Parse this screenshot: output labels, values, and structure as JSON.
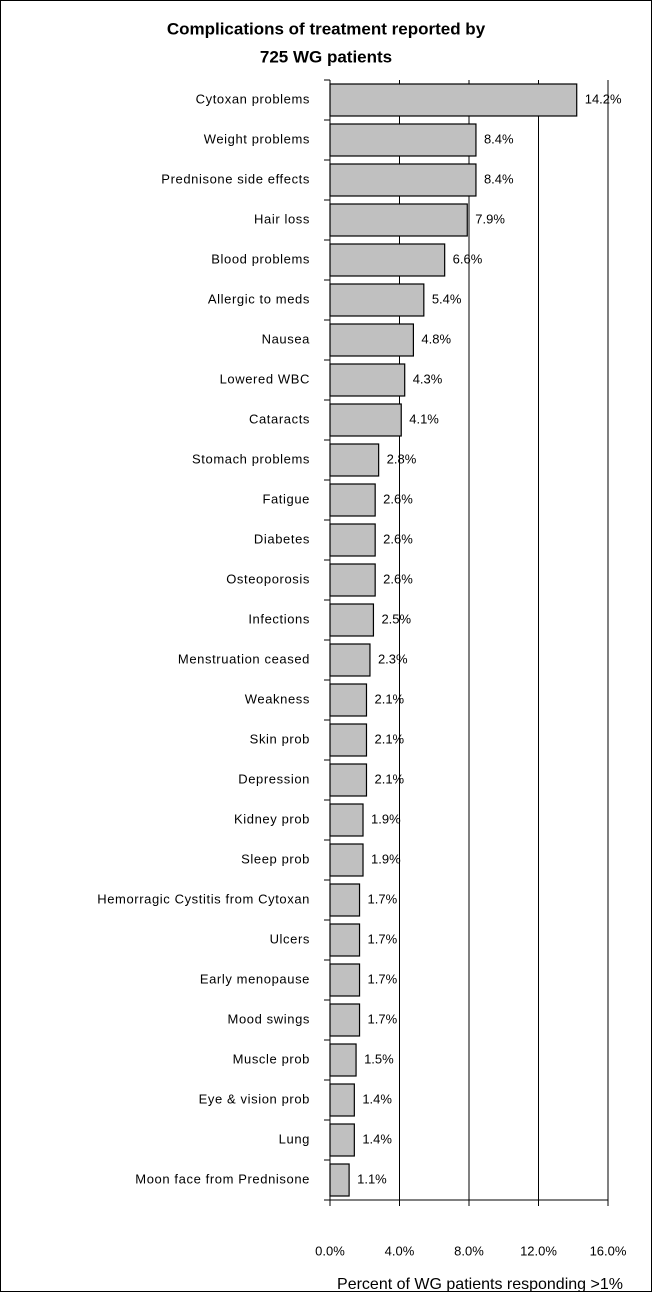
{
  "chart_data": {
    "type": "bar",
    "orientation": "horizontal",
    "title": [
      "Complications of treatment reported by",
      "725 WG patients"
    ],
    "xlabel": "Percent of WG patients responding  >1%",
    "categories": [
      "Cytoxan problems",
      "Weight problems",
      "Prednisone side effects",
      "Hair loss",
      "Blood problems",
      "Allergic to meds",
      "Nausea",
      "Lowered WBC",
      "Cataracts",
      "Stomach problems",
      "Fatigue",
      "Diabetes",
      "Osteoporosis",
      "Infections",
      "Menstruation ceased",
      "Weakness",
      "Skin prob",
      "Depression",
      "Kidney prob",
      "Sleep prob",
      "Hemorragic Cystitis from Cytoxan",
      "Ulcers",
      "Early menopause",
      "Mood swings",
      "Muscle prob",
      "Eye & vision prob",
      "Lung",
      "Moon face from Prednisone"
    ],
    "values": [
      14.2,
      8.4,
      8.4,
      7.9,
      6.6,
      5.4,
      4.8,
      4.3,
      4.1,
      2.8,
      2.6,
      2.6,
      2.6,
      2.5,
      2.3,
      2.1,
      2.1,
      2.1,
      1.9,
      1.9,
      1.7,
      1.7,
      1.7,
      1.7,
      1.5,
      1.4,
      1.4,
      1.1
    ],
    "value_labels": [
      "14.2%",
      "8.4%",
      "8.4%",
      "7.9%",
      "6.6%",
      "5.4%",
      "4.8%",
      "4.3%",
      "4.1%",
      "2.8%",
      "2.6%",
      "2.6%",
      "2.6%",
      "2.5%",
      "2.3%",
      "2.1%",
      "2.1%",
      "2.1%",
      "1.9%",
      "1.9%",
      "1.7%",
      "1.7%",
      "1.7%",
      "1.7%",
      "1.5%",
      "1.4%",
      "1.4%",
      "1.1%"
    ],
    "color": "#c0c0c0",
    "xlim": [
      0,
      16
    ],
    "xticks": [
      {
        "value": 0,
        "label": "0.0%"
      },
      {
        "value": 4,
        "label": "4.0%"
      },
      {
        "value": 8,
        "label": "8.0%"
      },
      {
        "value": 12,
        "label": "12.0%"
      },
      {
        "value": 16,
        "label": "16.0%"
      }
    ],
    "grid": true
  }
}
